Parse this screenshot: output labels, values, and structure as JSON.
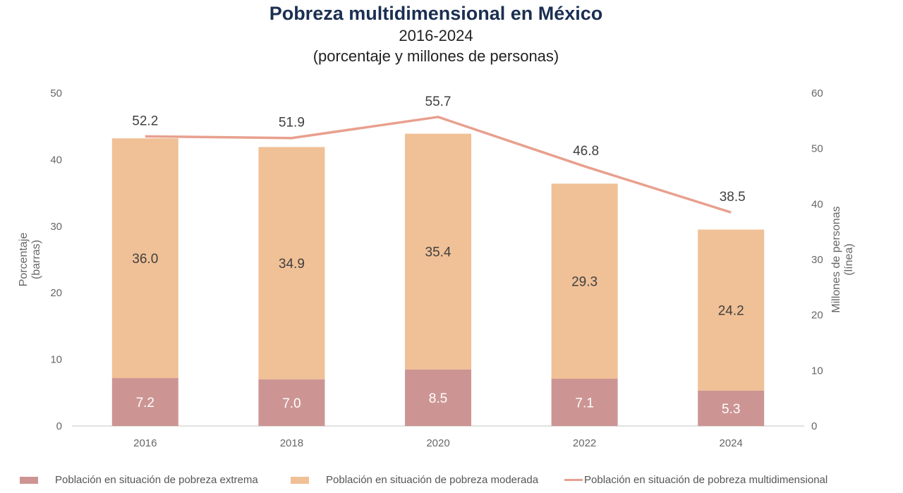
{
  "chart_data": {
    "type": "bar",
    "title": "Pobreza multidimensional en México",
    "subtitle": "2016-2024",
    "subtitle2": "(porcentaje y millones de personas)",
    "categories": [
      "2016",
      "2018",
      "2020",
      "2022",
      "2024"
    ],
    "series": [
      {
        "name": "Población en situación de pobreza extrema",
        "kind": "stacked-bar",
        "axis": "left",
        "color": "#cc9593",
        "values": [
          7.2,
          7.0,
          8.5,
          7.1,
          5.3
        ],
        "labels": [
          "7.2",
          "7.0",
          "8.5",
          "7.1",
          "5.3"
        ]
      },
      {
        "name": "Población en situación de pobreza moderada",
        "kind": "stacked-bar",
        "axis": "right-stack",
        "color": "#f0c096",
        "values": [
          36.0,
          34.9,
          35.4,
          29.3,
          24.2
        ],
        "labels": [
          "36.0",
          "34.9",
          "35.4",
          "29.3",
          "24.2"
        ]
      },
      {
        "name": "Población en situación de pobreza multidimensional",
        "kind": "line",
        "axis": "right",
        "color": "#e8a08e",
        "values": [
          52.2,
          51.9,
          55.7,
          46.8,
          38.5
        ],
        "labels": [
          "52.2",
          "51.9",
          "55.7",
          "46.8",
          "38.5"
        ]
      }
    ],
    "y_left": {
      "label": "Porcentaje",
      "label2": "(barras)",
      "range": [
        0,
        50
      ],
      "ticks": [
        "0",
        "10",
        "20",
        "30",
        "40",
        "50"
      ]
    },
    "y_right": {
      "label": "Millones de personas",
      "label2": "(línea)",
      "range": [
        0,
        60
      ],
      "ticks": [
        "0",
        "10",
        "20",
        "30",
        "40",
        "50",
        "60"
      ]
    },
    "grid": false,
    "legend_position": "bottom"
  }
}
